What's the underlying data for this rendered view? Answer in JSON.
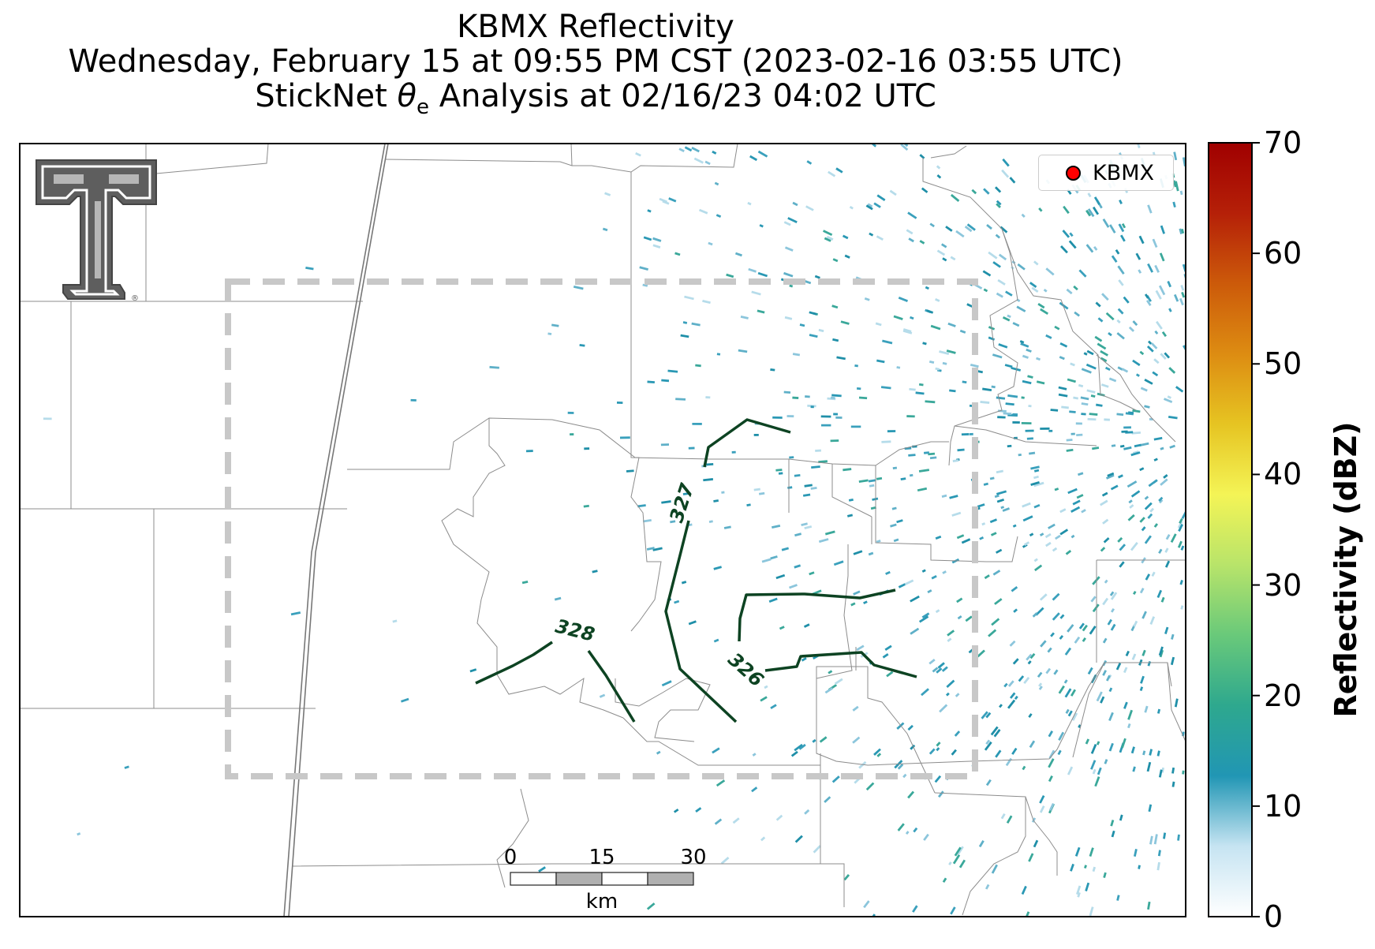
{
  "title": {
    "line1": "KBMX Reflectivity",
    "line2": "Wednesday, February 15 at 09:55 PM CST (2023-02-16 03:55 UTC)",
    "line3_prefix": "StickNet ",
    "line3_symbol": "θ",
    "line3_sub": "e",
    "line3_suffix": " Analysis at 02/16/23 04:02 UTC"
  },
  "legend": {
    "label": "KBMX",
    "marker_color": "#ff0000"
  },
  "colorbar": {
    "label": "Reflectivity (dBZ)",
    "ticks": [
      "70",
      "60",
      "50",
      "40",
      "30",
      "20",
      "10",
      "0"
    ],
    "colors": [
      "#ffffff",
      "#c6e4f2",
      "#2196b4",
      "#2ea88e",
      "#69c97a",
      "#b8e46a",
      "#f4f456",
      "#e6c422",
      "#dd8c12",
      "#cc5a0a",
      "#b52008",
      "#a00000"
    ]
  },
  "contours": {
    "color": "#0d4322",
    "labels": [
      "327",
      "328",
      "326"
    ]
  },
  "scale_bar": {
    "ticks": [
      "0",
      "15",
      "30"
    ],
    "unit": "km"
  },
  "logo": {
    "name": "Texas Tech Double T",
    "mark": "®"
  },
  "colors": {
    "echo": "#2a98b4",
    "echo_light": "#a8d4e6",
    "county_line": "#888888",
    "box": "#c8c8c8"
  }
}
